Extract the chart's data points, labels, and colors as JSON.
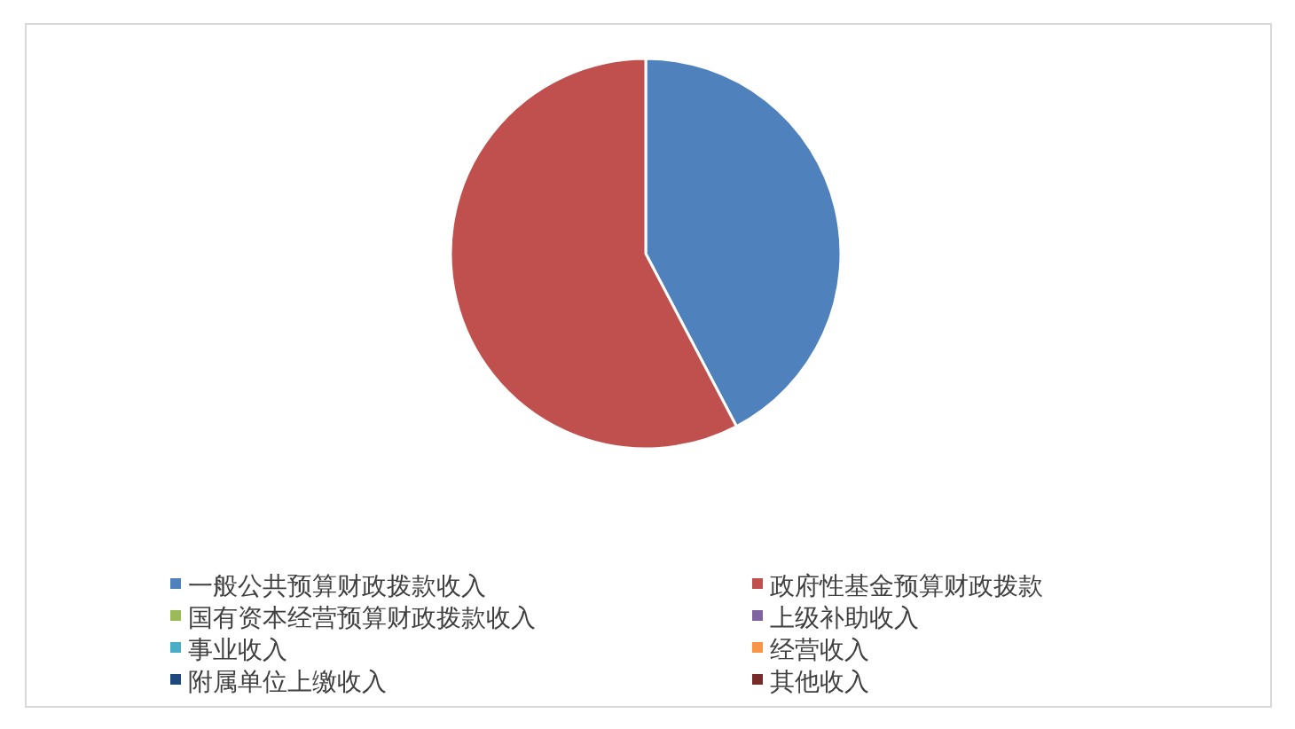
{
  "chart_data": {
    "type": "pie",
    "categories": [
      "一般公共预算财政拨款收入",
      "政府性基金预算财政拨款",
      "国有资本经营预算财政拨款收入",
      "上级补助收入",
      "事业收入",
      "经营收入",
      "附属单位上缴收入",
      "其他收入"
    ],
    "values": [
      42.3,
      57.7,
      0,
      0,
      0,
      0,
      0,
      0
    ],
    "colors": [
      "#4f81bd",
      "#c0504d",
      "#9bbb59",
      "#8064a2",
      "#4bacc6",
      "#f79646",
      "#1f497d",
      "#772c2a"
    ],
    "legend": "bottom"
  }
}
